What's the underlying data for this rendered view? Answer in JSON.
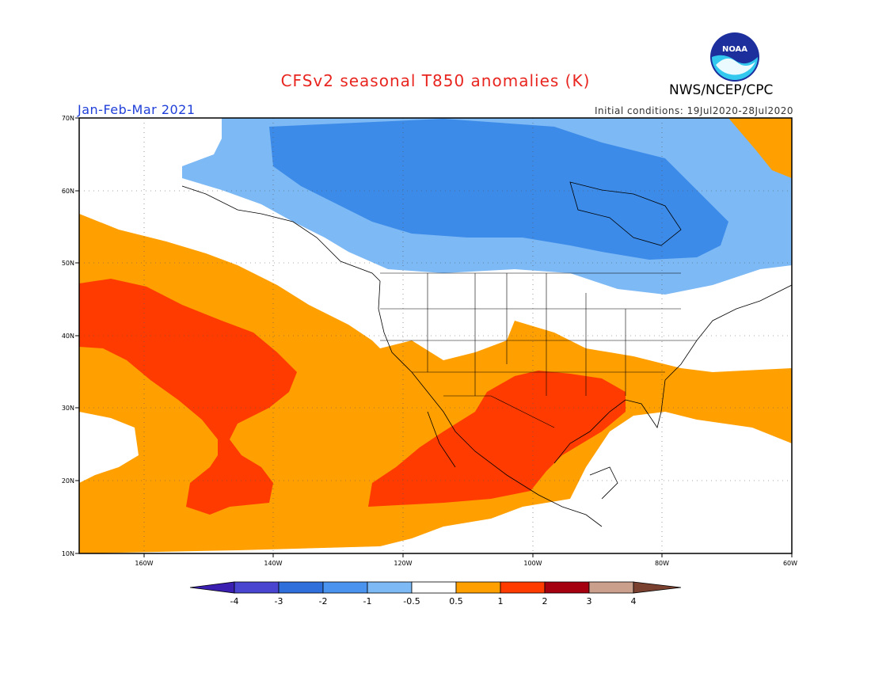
{
  "title": "CFSv2 seasonal T850 anomalies (K)",
  "agency": "NWS/NCEP/CPC",
  "logo_text": "NOAA",
  "season": "Jan-Feb-Mar 2021",
  "initial_conditions": "Initial conditions: 19Jul2020-28Jul2020",
  "map": {
    "lat_labels": [
      "70N",
      "60N",
      "50N",
      "40N",
      "30N",
      "20N",
      "10N"
    ],
    "lon_labels": [
      "160W",
      "140W",
      "120W",
      "100W",
      "80W",
      "60W"
    ],
    "lon_range": [
      "170W",
      "60W"
    ],
    "lat_range": [
      "10N",
      "70N"
    ],
    "grid": true
  },
  "colorbar": {
    "labels": [
      "-4",
      "-3",
      "-2",
      "-1",
      "-0.5",
      "0.5",
      "1",
      "2",
      "3",
      "4"
    ],
    "colors": [
      "#3a1fb0",
      "#4a45d0",
      "#2f6fdc",
      "#4a93ee",
      "#7db9f5",
      "#ffffff",
      "#ff9f00",
      "#ff3b00",
      "#a50010",
      "#caa08c",
      "#7a4030"
    ]
  },
  "colors": {
    "cold_light": "#7db9f5",
    "cold_mid": "#3d8be8",
    "warm_light": "#ff9f00",
    "warm_mid": "#ff3b00",
    "title": "#e8251f",
    "season": "#1f3fd8"
  }
}
